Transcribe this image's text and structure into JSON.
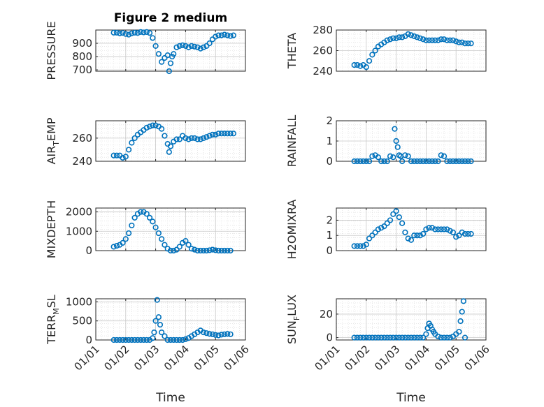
{
  "figure": {
    "title": "Figure 2 medium",
    "xlabel": "Time"
  },
  "marker_color": "#0072BD",
  "chart_data": [
    {
      "type": "scatter",
      "ylabel": "PRESSURE",
      "ylim": [
        690,
        1000
      ],
      "yticks": [
        700,
        800,
        900
      ],
      "xlim": [
        0,
        5
      ],
      "title": "Figure 2 medium",
      "x": [
        0.6,
        0.7,
        0.8,
        0.9,
        1.0,
        1.1,
        1.2,
        1.3,
        1.4,
        1.5,
        1.6,
        1.7,
        1.8,
        1.9,
        2.0,
        2.1,
        2.2,
        2.3,
        2.4,
        2.45,
        2.5,
        2.55,
        2.6,
        2.7,
        2.8,
        2.9,
        3.0,
        3.1,
        3.2,
        3.3,
        3.4,
        3.5,
        3.6,
        3.7,
        3.8,
        3.9,
        4.0,
        4.1,
        4.2,
        4.3,
        4.4,
        4.5,
        4.6
      ],
      "y": [
        980,
        980,
        975,
        978,
        970,
        965,
        975,
        980,
        978,
        985,
        982,
        985,
        978,
        940,
        880,
        820,
        760,
        790,
        810,
        690,
        750,
        800,
        820,
        870,
        880,
        885,
        880,
        870,
        880,
        875,
        870,
        860,
        870,
        880,
        900,
        930,
        950,
        960,
        960,
        965,
        960,
        955,
        960
      ]
    },
    {
      "type": "scatter",
      "ylabel": "THETA",
      "ylim": [
        240,
        280
      ],
      "yticks": [
        240,
        260,
        280
      ],
      "xlim": [
        0,
        5
      ],
      "x": [
        0.6,
        0.7,
        0.8,
        0.9,
        1.0,
        1.1,
        1.2,
        1.3,
        1.4,
        1.5,
        1.6,
        1.7,
        1.8,
        1.9,
        2.0,
        2.1,
        2.2,
        2.3,
        2.4,
        2.5,
        2.6,
        2.7,
        2.8,
        2.9,
        3.0,
        3.1,
        3.2,
        3.3,
        3.4,
        3.5,
        3.6,
        3.7,
        3.8,
        3.9,
        4.0,
        4.1,
        4.2,
        4.3,
        4.4,
        4.5
      ],
      "y": [
        246,
        246,
        245,
        246,
        244,
        250,
        256,
        260,
        264,
        266,
        268,
        270,
        271,
        272,
        272,
        273,
        273,
        274,
        276,
        275,
        274,
        273,
        272,
        271,
        270,
        270,
        270,
        270,
        270,
        271,
        271,
        270,
        270,
        270,
        269,
        268,
        268,
        267,
        267,
        267
      ]
    },
    {
      "type": "scatter",
      "ylabel": "AIR_TEMP",
      "ylim": [
        240,
        275
      ],
      "yticks": [
        240,
        260
      ],
      "xlim": [
        0,
        5
      ],
      "x": [
        0.6,
        0.7,
        0.8,
        0.9,
        1.0,
        1.1,
        1.2,
        1.3,
        1.4,
        1.5,
        1.6,
        1.7,
        1.8,
        1.9,
        2.0,
        2.1,
        2.2,
        2.3,
        2.4,
        2.45,
        2.5,
        2.6,
        2.7,
        2.8,
        2.9,
        3.0,
        3.1,
        3.2,
        3.3,
        3.4,
        3.5,
        3.6,
        3.7,
        3.8,
        3.9,
        4.0,
        4.1,
        4.2,
        4.3,
        4.4,
        4.5,
        4.6
      ],
      "y": [
        245,
        245,
        245,
        243,
        244,
        250,
        256,
        260,
        263,
        265,
        267,
        269,
        270,
        271,
        271,
        270,
        268,
        262,
        255,
        248,
        253,
        257,
        259,
        259,
        262,
        260,
        259,
        260,
        260,
        259,
        259,
        260,
        261,
        262,
        263,
        263,
        264,
        264,
        264,
        264,
        264,
        264
      ]
    },
    {
      "type": "scatter",
      "ylabel": "RAINFALL",
      "ylim": [
        0,
        2
      ],
      "yticks": [
        0,
        1,
        2
      ],
      "xlim": [
        0,
        5
      ],
      "x": [
        0.6,
        0.7,
        0.8,
        0.9,
        1.0,
        1.1,
        1.2,
        1.3,
        1.4,
        1.5,
        1.6,
        1.7,
        1.8,
        1.9,
        1.95,
        2.0,
        2.05,
        2.1,
        2.15,
        2.2,
        2.3,
        2.4,
        2.5,
        2.6,
        2.7,
        2.8,
        2.9,
        3.0,
        3.1,
        3.2,
        3.3,
        3.4,
        3.5,
        3.6,
        3.7,
        3.8,
        3.9,
        4.0,
        4.1,
        4.2,
        4.3,
        4.4,
        4.5
      ],
      "y": [
        0,
        0,
        0,
        0,
        0,
        0,
        0.25,
        0.3,
        0.2,
        0,
        0,
        0,
        0.25,
        0.2,
        1.6,
        1.0,
        0.7,
        0.3,
        0.25,
        0,
        0.3,
        0.25,
        0,
        0,
        0,
        0,
        0,
        0,
        0,
        0,
        0,
        0,
        0.3,
        0.25,
        0,
        0,
        0,
        0,
        0,
        0,
        0,
        0,
        0
      ]
    },
    {
      "type": "scatter",
      "ylabel": "MIXDEPTH",
      "ylim": [
        0,
        2200
      ],
      "yticks": [
        0,
        1000,
        2000
      ],
      "xlim": [
        0,
        5
      ],
      "x": [
        0.6,
        0.7,
        0.8,
        0.9,
        1.0,
        1.1,
        1.2,
        1.3,
        1.4,
        1.5,
        1.6,
        1.7,
        1.8,
        1.9,
        2.0,
        2.1,
        2.2,
        2.3,
        2.4,
        2.5,
        2.6,
        2.7,
        2.8,
        2.9,
        3.0,
        3.1,
        3.2,
        3.3,
        3.4,
        3.5,
        3.6,
        3.7,
        3.8,
        3.9,
        4.0,
        4.1,
        4.2,
        4.3,
        4.4,
        4.5
      ],
      "y": [
        200,
        250,
        300,
        400,
        600,
        900,
        1300,
        1700,
        1900,
        2000,
        2000,
        1900,
        1700,
        1500,
        1200,
        900,
        600,
        300,
        100,
        0,
        0,
        50,
        200,
        400,
        500,
        300,
        100,
        50,
        0,
        0,
        0,
        0,
        20,
        50,
        20,
        0,
        0,
        0,
        0,
        0
      ]
    },
    {
      "type": "scatter",
      "ylabel": "H2OMIXRA",
      "ylim": [
        0,
        2.8
      ],
      "yticks": [
        0,
        1,
        2
      ],
      "xlim": [
        0,
        5
      ],
      "x": [
        0.6,
        0.7,
        0.8,
        0.9,
        1.0,
        1.1,
        1.2,
        1.3,
        1.4,
        1.5,
        1.6,
        1.7,
        1.8,
        1.9,
        2.0,
        2.1,
        2.2,
        2.3,
        2.4,
        2.5,
        2.6,
        2.7,
        2.8,
        2.9,
        3.0,
        3.1,
        3.2,
        3.3,
        3.4,
        3.5,
        3.6,
        3.7,
        3.8,
        3.9,
        4.0,
        4.1,
        4.2,
        4.3,
        4.4,
        4.5
      ],
      "y": [
        0.3,
        0.3,
        0.3,
        0.3,
        0.4,
        0.8,
        1.0,
        1.2,
        1.4,
        1.5,
        1.6,
        1.8,
        2.0,
        2.4,
        2.6,
        2.2,
        1.8,
        1.2,
        0.8,
        0.7,
        1.0,
        1.0,
        1.0,
        1.1,
        1.4,
        1.5,
        1.5,
        1.4,
        1.4,
        1.4,
        1.4,
        1.4,
        1.3,
        1.2,
        0.9,
        1.0,
        1.2,
        1.1,
        1.1,
        1.1
      ]
    },
    {
      "type": "scatter",
      "ylabel": "TERR_MSL",
      "ylim": [
        0,
        1080
      ],
      "yticks": [
        0,
        500,
        1000
      ],
      "xlim": [
        0,
        5
      ],
      "x": [
        0.6,
        0.7,
        0.8,
        0.9,
        1.0,
        1.1,
        1.2,
        1.3,
        1.4,
        1.5,
        1.6,
        1.7,
        1.8,
        1.9,
        1.95,
        2.0,
        2.05,
        2.1,
        2.15,
        2.2,
        2.3,
        2.4,
        2.5,
        2.6,
        2.7,
        2.8,
        2.9,
        3.0,
        3.1,
        3.2,
        3.3,
        3.4,
        3.5,
        3.6,
        3.7,
        3.8,
        3.9,
        4.0,
        4.1,
        4.2,
        4.3,
        4.4,
        4.5
      ],
      "y": [
        0,
        0,
        0,
        0,
        0,
        0,
        0,
        0,
        0,
        0,
        0,
        0,
        0,
        50,
        200,
        500,
        1050,
        600,
        400,
        200,
        100,
        0,
        0,
        0,
        0,
        0,
        0,
        20,
        50,
        100,
        150,
        200,
        250,
        200,
        180,
        160,
        150,
        130,
        120,
        140,
        150,
        160,
        150
      ]
    },
    {
      "type": "scatter",
      "ylabel": "SUN_FLUX",
      "ylim": [
        -2,
        33
      ],
      "yticks": [
        0,
        20
      ],
      "xlim": [
        0,
        5
      ],
      "x": [
        0.6,
        0.7,
        0.8,
        0.9,
        1.0,
        1.1,
        1.2,
        1.3,
        1.4,
        1.5,
        1.6,
        1.7,
        1.8,
        1.9,
        2.0,
        2.1,
        2.2,
        2.3,
        2.4,
        2.5,
        2.6,
        2.7,
        2.8,
        2.9,
        3.0,
        3.05,
        3.1,
        3.15,
        3.2,
        3.25,
        3.3,
        3.4,
        3.5,
        3.6,
        3.7,
        3.8,
        3.9,
        4.0,
        4.1,
        4.15,
        4.2,
        4.25,
        4.3
      ],
      "y": [
        0,
        0,
        0,
        0,
        0,
        0,
        0,
        0,
        0,
        0,
        0,
        0,
        0,
        0,
        0,
        0,
        0,
        0,
        0,
        0,
        0,
        0,
        0,
        0,
        3,
        8,
        12,
        10,
        7,
        5,
        3,
        1,
        0,
        0,
        0,
        0,
        1,
        3,
        5,
        14,
        22,
        31,
        0
      ]
    }
  ],
  "xticklabels": [
    "01/01",
    "01/02",
    "01/03",
    "01/04",
    "01/05",
    "01/06"
  ]
}
